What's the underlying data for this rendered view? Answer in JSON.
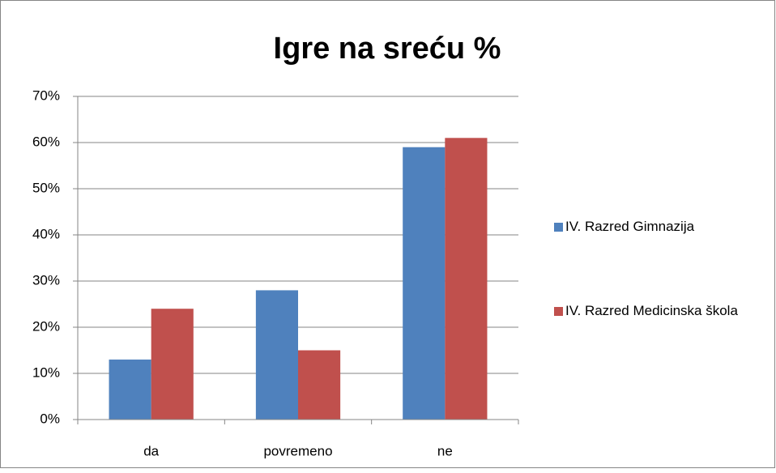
{
  "chart_data": {
    "type": "bar",
    "title": "Igre na sreću %",
    "categories": [
      "da",
      "povremeno",
      "ne"
    ],
    "series": [
      {
        "name": "IV. Razred Gimnazija",
        "color": "#4f81bd",
        "values": [
          13,
          28,
          59
        ]
      },
      {
        "name": "IV. Razred Medicinska škola",
        "color": "#c0504d",
        "values": [
          24,
          15,
          61
        ]
      }
    ],
    "ylim": [
      0,
      70
    ],
    "yticks": [
      {
        "value": 0,
        "label": "0%"
      },
      {
        "value": 10,
        "label": "10%"
      },
      {
        "value": 20,
        "label": "20%"
      },
      {
        "value": 30,
        "label": "30%"
      },
      {
        "value": 40,
        "label": "40%"
      },
      {
        "value": 50,
        "label": "50%"
      },
      {
        "value": 60,
        "label": "60%"
      },
      {
        "value": 70,
        "label": "70%"
      }
    ],
    "grid": true,
    "legend": "right"
  }
}
